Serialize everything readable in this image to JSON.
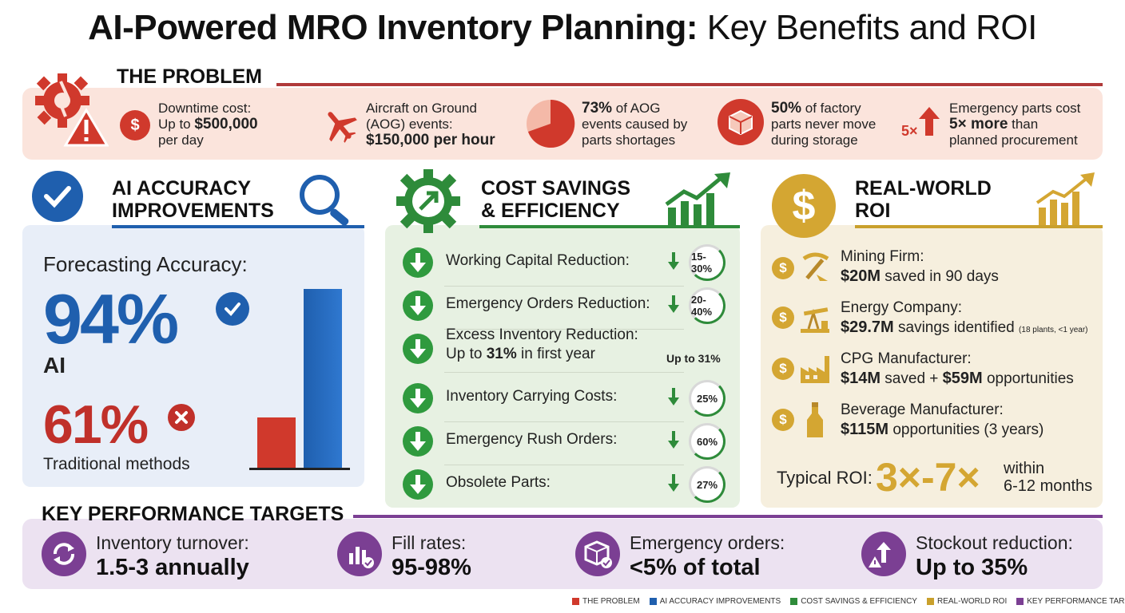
{
  "title": {
    "bold": "AI-Powered MRO Inventory Planning:",
    "light": "Key Benefits and ROI"
  },
  "problem": {
    "heading": "THE PROBLEM",
    "items": [
      {
        "pre": "Downtime cost:",
        "l2a": "Up to ",
        "l2b": "$500,000",
        "l3": "per day"
      },
      {
        "pre": "Aircraft on Ground",
        "l2": "(AOG) events:",
        "l3": "$150,000 per hour"
      },
      {
        "l1a": "73%",
        "l1b": " of AOG",
        "l2": "events caused by",
        "l3": "parts shortages"
      },
      {
        "l1a": "50%",
        "l1b": " of factory",
        "l2": "parts never move",
        "l3": "during storage"
      },
      {
        "badge": "5×",
        "l1": "Emergency parts cost",
        "l2a": "5× more",
        "l2b": " than",
        "l3": "planned procurement"
      }
    ]
  },
  "accuracy": {
    "heading1": "AI ACCURACY",
    "heading2": "IMPROVEMENTS",
    "label": "Forecasting Accuracy:",
    "ai_value": "94%",
    "ai_label": "AI",
    "trad_value": "61%",
    "trad_label": "Traditional methods",
    "bars": {
      "traditional": 61,
      "ai": 94
    }
  },
  "savings": {
    "heading1": "COST SAVINGS",
    "heading2": "& EFFICIENCY",
    "rows": [
      {
        "label": "Working Capital Reduction:",
        "pct": "15-30%"
      },
      {
        "label": "Emergency Orders Reduction:",
        "pct": "20-40%"
      },
      {
        "label": "Excess Inventory Reduction:",
        "l2a": "Up to ",
        "l2b": "31%",
        "l2c": " in first year",
        "pct": "Up to 31%"
      },
      {
        "label": "Inventory Carrying Costs:",
        "pct": "25%"
      },
      {
        "label": "Emergency Rush Orders:",
        "pct": "60%"
      },
      {
        "label": "Obsolete Parts:",
        "pct": "27%"
      }
    ]
  },
  "roi": {
    "heading1": "REAL-WORLD",
    "heading2": "ROI",
    "items": [
      {
        "name": "Mining Firm:",
        "va": "$20M",
        "vb": " saved in 90 days",
        "vc": ""
      },
      {
        "name": "Energy Company:",
        "va": "$29.7M",
        "vb": " savings identified",
        "vc": "(18 plants, <1 year)"
      },
      {
        "name": "CPG Manufacturer:",
        "va": "$14M",
        "vb": " saved + ",
        "vd": "$59M",
        "ve": " opportunities"
      },
      {
        "name": "Beverage Manufacturer:",
        "va": "$115M",
        "vb": " opportunities (3 years)",
        "vc": ""
      }
    ],
    "typical_label": "Typical ROI:",
    "typical_value": "3×-7×",
    "typical_within1": "within",
    "typical_within2": "6-12 months"
  },
  "kpi": {
    "heading": "KEY PERFORMANCE TARGETS",
    "items": [
      {
        "label": "Inventory turnover:",
        "value": "1.5-3 annually"
      },
      {
        "label": "Fill rates:",
        "value": "95-98%"
      },
      {
        "label": "Emergency orders:",
        "value": "<5% of total"
      },
      {
        "label": "Stockout reduction:",
        "value": "Up to 35%"
      }
    ]
  },
  "legend": [
    {
      "label": "THE PROBLEM",
      "color": "#d0392c"
    },
    {
      "label": "AI ACCURACY IMPROVEMENTS",
      "color": "#1f5fae"
    },
    {
      "label": "COST SAVINGS & EFFICIENCY",
      "color": "#2e8b3a"
    },
    {
      "label": "REAL-WORLD ROI",
      "color": "#c9a02c"
    },
    {
      "label": "KEY PERFORMANCE TARGETS",
      "color": "#7b3f93"
    }
  ],
  "colors": {
    "red": "#d0392c",
    "blue": "#1f5fae",
    "green": "#2e8b3a",
    "gold": "#c9a02c",
    "purple": "#7b3f93"
  }
}
